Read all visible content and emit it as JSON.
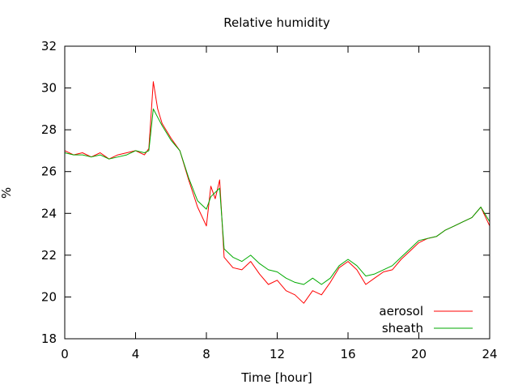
{
  "chart_data": {
    "type": "line",
    "title": "Relative humidity",
    "xlabel": "Time [hour]",
    "ylabel": "%",
    "xlim": [
      0,
      24
    ],
    "ylim": [
      18,
      32
    ],
    "x_ticks": [
      0,
      4,
      8,
      12,
      16,
      20,
      24
    ],
    "y_ticks": [
      18,
      20,
      22,
      24,
      26,
      28,
      30,
      32
    ],
    "x_tick_labels": [
      "0",
      "4",
      "8",
      "12",
      "16",
      "20",
      "24"
    ],
    "y_tick_labels": [
      "18",
      "20",
      "22",
      "24",
      "26",
      "28",
      "30",
      "32"
    ],
    "grid": false,
    "legend_position": "bottom-right",
    "series": [
      {
        "name": "aerosol",
        "color": "#ff0000",
        "x": [
          0,
          0.5,
          1,
          1.5,
          2,
          2.5,
          3,
          3.5,
          4,
          4.5,
          4.75,
          5,
          5.25,
          5.5,
          6,
          6.5,
          7,
          7.5,
          8,
          8.25,
          8.5,
          8.75,
          9,
          9.5,
          10,
          10.5,
          11,
          11.5,
          12,
          12.5,
          13,
          13.5,
          14,
          14.5,
          15,
          15.5,
          16,
          16.5,
          17,
          17.5,
          18,
          18.5,
          19,
          19.5,
          20,
          20.5,
          21,
          21.5,
          22,
          22.5,
          23,
          23.5,
          24
        ],
        "y": [
          27.0,
          26.8,
          26.9,
          26.7,
          26.9,
          26.6,
          26.8,
          26.9,
          27.0,
          26.8,
          27.1,
          30.3,
          29.0,
          28.3,
          27.6,
          27.0,
          25.6,
          24.3,
          23.4,
          25.3,
          24.7,
          25.6,
          21.9,
          21.4,
          21.3,
          21.7,
          21.1,
          20.6,
          20.8,
          20.3,
          20.1,
          19.7,
          20.3,
          20.1,
          20.7,
          21.4,
          21.7,
          21.3,
          20.6,
          20.9,
          21.2,
          21.3,
          21.8,
          22.2,
          22.6,
          22.8,
          22.9,
          23.2,
          23.4,
          23.6,
          23.8,
          24.3,
          23.4
        ]
      },
      {
        "name": "sheath",
        "color": "#00aa00",
        "x": [
          0,
          0.5,
          1,
          1.5,
          2,
          2.5,
          3,
          3.5,
          4,
          4.5,
          4.75,
          5,
          5.25,
          5.5,
          6,
          6.5,
          7,
          7.5,
          8,
          8.25,
          8.5,
          8.75,
          9,
          9.5,
          10,
          10.5,
          11,
          11.5,
          12,
          12.5,
          13,
          13.5,
          14,
          14.5,
          15,
          15.5,
          16,
          16.5,
          17,
          17.5,
          18,
          18.5,
          19,
          19.5,
          20,
          20.5,
          21,
          21.5,
          22,
          22.5,
          23,
          23.5,
          24
        ],
        "y": [
          26.9,
          26.8,
          26.8,
          26.7,
          26.8,
          26.6,
          26.7,
          26.8,
          27.0,
          26.9,
          27.0,
          29.0,
          28.6,
          28.2,
          27.5,
          27.0,
          25.7,
          24.6,
          24.2,
          24.8,
          25.0,
          25.2,
          22.3,
          21.9,
          21.7,
          22.0,
          21.6,
          21.3,
          21.2,
          20.9,
          20.7,
          20.6,
          20.9,
          20.6,
          20.9,
          21.5,
          21.8,
          21.5,
          21.0,
          21.1,
          21.3,
          21.5,
          21.9,
          22.3,
          22.7,
          22.8,
          22.9,
          23.2,
          23.4,
          23.6,
          23.8,
          24.3,
          23.6
        ]
      }
    ]
  }
}
